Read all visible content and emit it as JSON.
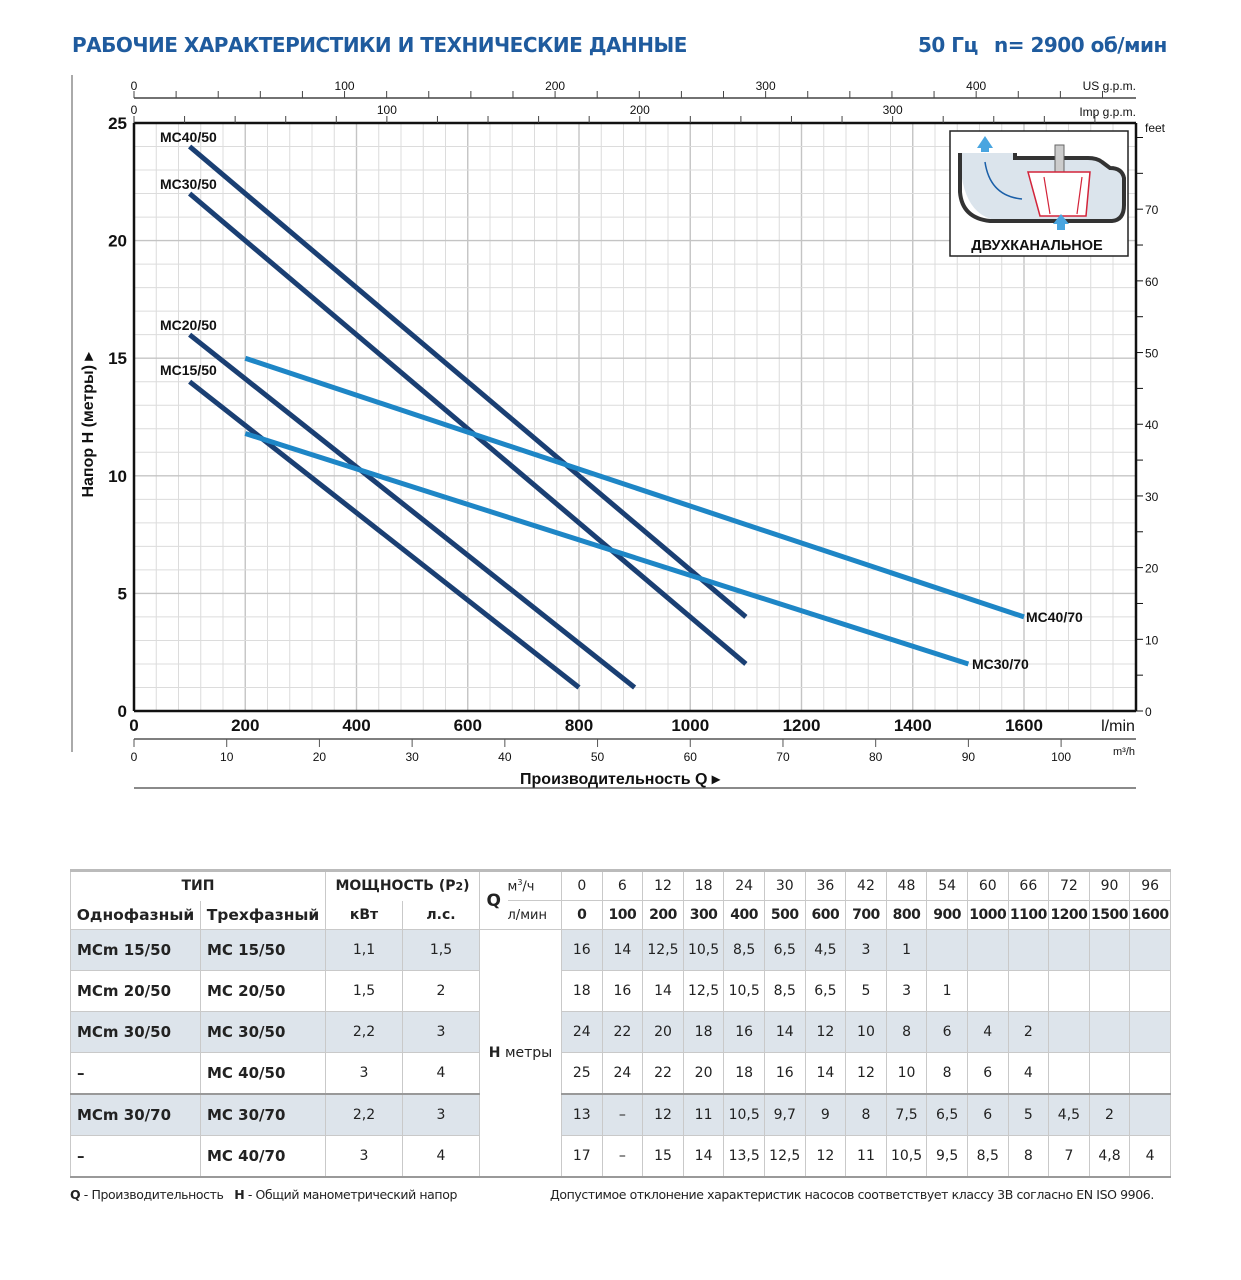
{
  "header": {
    "title": "РАБОЧИЕ ХАРАКТЕРИСТИКИ И ТЕХНИЧЕСКИЕ ДАННЫЕ",
    "freq": "50 Гц",
    "speed": "n= 2900 об/мин"
  },
  "chart_data": {
    "type": "line",
    "xlabel": "Производительность Q",
    "ylabel": "Напор H (метры)",
    "x_unit": "l/min",
    "xlim": [
      0,
      1800
    ],
    "ylim": [
      0,
      25
    ],
    "xticks": [
      0,
      200,
      400,
      600,
      800,
      1000,
      1200,
      1400,
      1600
    ],
    "yticks": [
      0,
      5,
      10,
      15,
      20,
      25
    ],
    "grid": true,
    "secondary_axes": {
      "us_gpm": {
        "label": "US g.p.m.",
        "ticks": [
          0,
          100,
          200,
          300,
          400
        ]
      },
      "imp_gpm": {
        "label": "Imp g.p.m.",
        "ticks": [
          0,
          100,
          200,
          300
        ]
      },
      "m3h": {
        "label": "m³/h",
        "ticks": [
          0,
          10,
          20,
          30,
          40,
          50,
          60,
          70,
          80,
          90,
          100
        ]
      },
      "feet": {
        "label": "feet",
        "ticks": [
          0,
          10,
          20,
          30,
          40,
          50,
          60,
          70
        ]
      }
    },
    "series": [
      {
        "name": "MC40/50",
        "color": "#1a3f73",
        "x": [
          100,
          1100
        ],
        "y": [
          24,
          4
        ]
      },
      {
        "name": "MC30/50",
        "color": "#1a3f73",
        "x": [
          100,
          1100
        ],
        "y": [
          22,
          2
        ]
      },
      {
        "name": "MC20/50",
        "color": "#1a3f73",
        "x": [
          100,
          900
        ],
        "y": [
          16,
          1
        ]
      },
      {
        "name": "MC15/50",
        "color": "#1a3f73",
        "x": [
          100,
          800
        ],
        "y": [
          14,
          1
        ]
      },
      {
        "name": "MC40/70",
        "color": "#1e86c6",
        "x": [
          200,
          1600
        ],
        "y": [
          15,
          4
        ]
      },
      {
        "name": "MC30/70",
        "color": "#1e86c6",
        "x": [
          200,
          1500
        ],
        "y": [
          11.8,
          2
        ]
      }
    ],
    "inset_label": "ДВУХКАНАЛЬНОЕ"
  },
  "table": {
    "type_header": "ТИП",
    "power_header": "МОЩНОСТЬ (P2)",
    "single_phase": "Однофазный",
    "three_phase": "Трехфазный",
    "kw": "кВт",
    "hp": "л.с.",
    "q_label": "Q",
    "m3h_label": "м³/ч",
    "lmin_label": "л/мин",
    "h_label": "H",
    "h_unit": "метры",
    "m3h": [
      "0",
      "6",
      "12",
      "18",
      "24",
      "30",
      "36",
      "42",
      "48",
      "54",
      "60",
      "66",
      "72",
      "90",
      "96"
    ],
    "lmin": [
      "0",
      "100",
      "200",
      "300",
      "400",
      "500",
      "600",
      "700",
      "800",
      "900",
      "1000",
      "1100",
      "1200",
      "1500",
      "1600"
    ],
    "rows": [
      {
        "single": "MCm 15/50",
        "three": "MC 15/50",
        "kw": "1,1",
        "hp": "1,5",
        "h": [
          "16",
          "14",
          "12,5",
          "10,5",
          "8,5",
          "6,5",
          "4,5",
          "3",
          "1",
          "",
          "",
          "",
          "",
          "",
          ""
        ]
      },
      {
        "single": "MCm 20/50",
        "three": "MC 20/50",
        "kw": "1,5",
        "hp": "2",
        "h": [
          "18",
          "16",
          "14",
          "12,5",
          "10,5",
          "8,5",
          "6,5",
          "5",
          "3",
          "1",
          "",
          "",
          "",
          "",
          ""
        ]
      },
      {
        "single": "MCm 30/50",
        "three": "MC 30/50",
        "kw": "2,2",
        "hp": "3",
        "h": [
          "24",
          "22",
          "20",
          "18",
          "16",
          "14",
          "12",
          "10",
          "8",
          "6",
          "4",
          "2",
          "",
          "",
          ""
        ]
      },
      {
        "single": "–",
        "three": "MC 40/50",
        "kw": "3",
        "hp": "4",
        "h": [
          "25",
          "24",
          "22",
          "20",
          "18",
          "16",
          "14",
          "12",
          "10",
          "8",
          "6",
          "4",
          "",
          "",
          ""
        ]
      },
      {
        "single": "MCm 30/70",
        "three": "MC 30/70",
        "kw": "2,2",
        "hp": "3",
        "h": [
          "13",
          "–",
          "12",
          "11",
          "10,5",
          "9,7",
          "9",
          "8",
          "7,5",
          "6,5",
          "6",
          "5",
          "4,5",
          "2",
          ""
        ]
      },
      {
        "single": "–",
        "three": "MC 40/70",
        "kw": "3",
        "hp": "4",
        "h": [
          "17",
          "–",
          "15",
          "14",
          "13,5",
          "12,5",
          "12",
          "11",
          "10,5",
          "9,5",
          "8,5",
          "8",
          "7",
          "4,8",
          "4"
        ]
      }
    ]
  },
  "footer": {
    "q_key": "Q",
    "q_desc": " - Производительность",
    "h_key": "H",
    "h_desc": " - Общий манометрический напор",
    "tolerance": "Допустимое отклонение характеристик насосов соответствует классу 3B согласно EN ISO 9906."
  }
}
